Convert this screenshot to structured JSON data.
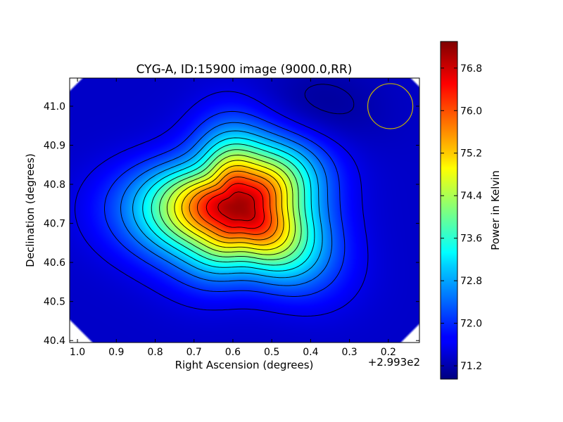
{
  "chart_data": {
    "type": "heatmap",
    "title": "CYG-A, ID:15900 image (9000.0,RR)",
    "xlabel": "Right Ascension (degrees)",
    "ylabel": "Declination (degrees)",
    "x_offset_label": "+2.993e2",
    "x_offset": 299.3,
    "xlim": [
      1.02,
      0.12
    ],
    "ylim": [
      40.395,
      41.072
    ],
    "x_inverted": true,
    "x_ticks": [
      1.0,
      0.9,
      0.8,
      0.7,
      0.6,
      0.5,
      0.4,
      0.3,
      0.2
    ],
    "x_tick_labels": [
      "1.0",
      "0.9",
      "0.8",
      "0.7",
      "0.6",
      "0.5",
      "0.4",
      "0.3",
      "0.2"
    ],
    "y_ticks": [
      40.4,
      40.5,
      40.6,
      40.7,
      40.8,
      40.9,
      41.0
    ],
    "y_tick_labels": [
      "40.4",
      "40.5",
      "40.6",
      "40.7",
      "40.8",
      "40.9",
      "41.0"
    ],
    "colormap": "jet",
    "source_peak": {
      "x": 0.585,
      "y": 40.742,
      "value": 77.1
    },
    "background_value": 71.4,
    "minimum_region": {
      "x": 0.39,
      "y": 40.98,
      "value": 71.0
    },
    "beam_circle": {
      "x": 0.195,
      "y": 41.0,
      "radius": 0.058,
      "color": "#c8b400"
    },
    "contour_levels": [
      71.6,
      72.0,
      72.4,
      72.8,
      73.2,
      73.6,
      74.0,
      74.4,
      74.8,
      75.2,
      75.6,
      76.0,
      76.4,
      76.8
    ],
    "low_contour_level": 71.2,
    "colorbar": {
      "label": "Power in Kelvin",
      "range": [
        70.95,
        77.3
      ],
      "ticks": [
        71.2,
        72.0,
        72.8,
        73.6,
        74.4,
        75.2,
        76.0,
        76.8
      ],
      "tick_labels": [
        "71.2",
        "72.0",
        "72.8",
        "73.6",
        "74.4",
        "75.2",
        "76.0",
        "76.8"
      ]
    }
  }
}
